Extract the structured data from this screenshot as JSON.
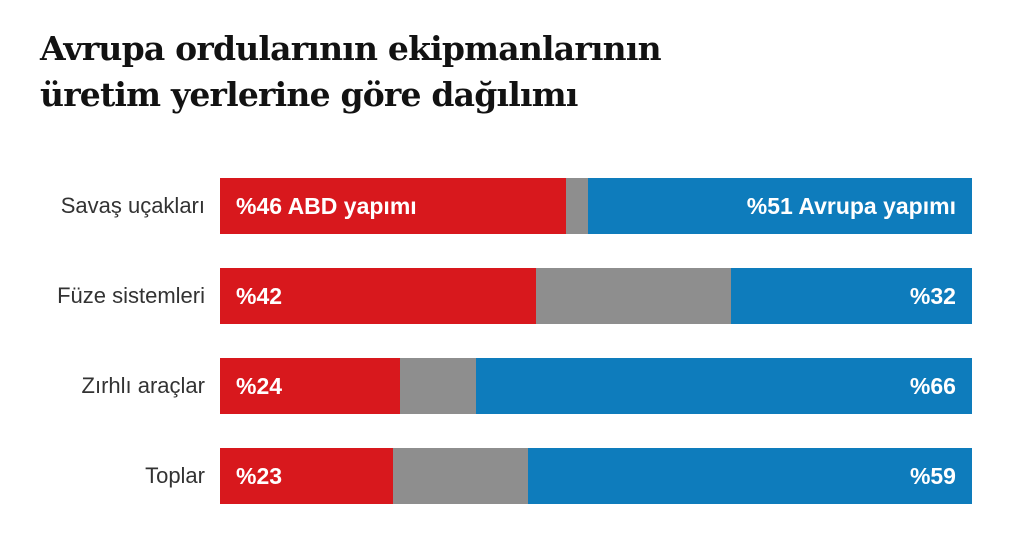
{
  "title": {
    "line1": "Avrupa ordularının ekipmanlarının",
    "line2": "üretim yerlerine göre dağılımı"
  },
  "colors": {
    "us_made": "#d8181d",
    "unlabeled": "#8e8e8e",
    "europe_made": "#0e7cbc",
    "title_text": "#121212",
    "category_text": "#333333",
    "bar_value_text": "#ffffff",
    "background": "#ffffff"
  },
  "chart_data": {
    "type": "bar",
    "orientation": "horizontal",
    "stacked": true,
    "unit": "percent",
    "title": "Avrupa ordularının ekipmanlarının üretim yerlerine göre dağılımı",
    "xlabel": "",
    "ylabel": "",
    "xlim": [
      0,
      100
    ],
    "grid": false,
    "legend": "inline-first-bar",
    "categories": [
      "Savaş uçakları",
      "Füze sistemleri",
      "Zırhlı araçlar",
      "Toplar"
    ],
    "series": [
      {
        "id": "us_made",
        "name": "ABD yapımı",
        "color": "#d8181d",
        "values": [
          46,
          42,
          24,
          23
        ]
      },
      {
        "id": "unlabeled",
        "name": "",
        "color": "#8e8e8e",
        "values": [
          3,
          26,
          10,
          18
        ]
      },
      {
        "id": "europe_made",
        "name": "Avrupa yapımı",
        "color": "#0e7cbc",
        "values": [
          51,
          32,
          66,
          59
        ]
      }
    ],
    "bar_labels": [
      {
        "left": "%46 ABD yapımı",
        "right": "%51 Avrupa yapımı"
      },
      {
        "left": "%42",
        "right": "%32"
      },
      {
        "left": "%24",
        "right": "%66"
      },
      {
        "left": "%23",
        "right": "%59"
      }
    ]
  }
}
